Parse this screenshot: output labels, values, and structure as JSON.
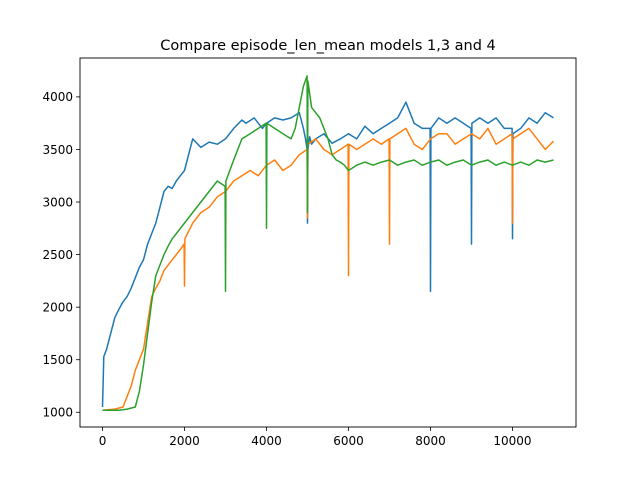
{
  "chart_data": {
    "type": "line",
    "title": "Compare episode_len_mean models 1,3 and 4",
    "xlabel": "",
    "ylabel": "",
    "xlim": [
      -550,
      11550
    ],
    "ylim": [
      860,
      4370
    ],
    "grid": false,
    "legend": "none",
    "x_ticks": [
      0,
      2000,
      4000,
      6000,
      8000,
      10000
    ],
    "y_ticks": [
      1000,
      1500,
      2000,
      2500,
      3000,
      3500,
      4000
    ],
    "colors": [
      "#1f77b4",
      "#ff7f0e",
      "#2ca02c"
    ],
    "series": [
      {
        "color": "#1f77b4",
        "x": [
          0,
          30,
          100,
          200,
          300,
          400,
          500,
          600,
          700,
          800,
          900,
          1000,
          1100,
          1200,
          1300,
          1400,
          1500,
          1600,
          1700,
          1800,
          1900,
          2000,
          2100,
          2200,
          2400,
          2600,
          2800,
          3000,
          3200,
          3400,
          3500,
          3700,
          3900,
          4000,
          4200,
          4400,
          4600,
          4800,
          4900,
          4950,
          4990,
          5000,
          5010,
          5050,
          5100,
          5200,
          5400,
          5600,
          5800,
          6000,
          6200,
          6400,
          6600,
          6800,
          7000,
          7200,
          7400,
          7600,
          7800,
          7990,
          8000,
          8010,
          8200,
          8400,
          8600,
          8800,
          8990,
          9000,
          9010,
          9200,
          9400,
          9600,
          9800,
          9990,
          10000,
          10010,
          10200,
          10400,
          10600,
          10800,
          11000
        ],
        "y": [
          1050,
          1530,
          1600,
          1750,
          1900,
          1980,
          2050,
          2100,
          2180,
          2280,
          2380,
          2450,
          2600,
          2700,
          2800,
          2950,
          3100,
          3150,
          3130,
          3200,
          3250,
          3300,
          3450,
          3600,
          3520,
          3570,
          3550,
          3600,
          3700,
          3780,
          3750,
          3800,
          3700,
          3750,
          3800,
          3780,
          3800,
          3850,
          3700,
          3600,
          3500,
          2800,
          3500,
          3620,
          3550,
          3600,
          3650,
          3560,
          3600,
          3650,
          3600,
          3720,
          3650,
          3700,
          3750,
          3800,
          3950,
          3750,
          3700,
          3700,
          2150,
          3700,
          3800,
          3750,
          3800,
          3750,
          3700,
          2600,
          3750,
          3800,
          3750,
          3800,
          3700,
          3700,
          2650,
          3650,
          3700,
          3800,
          3750,
          3850,
          3800
        ]
      },
      {
        "color": "#ff7f0e",
        "x": [
          0,
          300,
          500,
          600,
          700,
          800,
          900,
          1000,
          1100,
          1200,
          1300,
          1400,
          1500,
          1600,
          1700,
          1800,
          1900,
          1990,
          2000,
          2010,
          2200,
          2400,
          2600,
          2800,
          3000,
          3200,
          3400,
          3600,
          3800,
          4000,
          4200,
          4400,
          4600,
          4800,
          4990,
          5000,
          5010,
          5200,
          5400,
          5600,
          5800,
          5990,
          6000,
          6010,
          6200,
          6400,
          6600,
          6800,
          6990,
          7000,
          7010,
          7200,
          7400,
          7600,
          7800,
          8000,
          8200,
          8400,
          8600,
          8800,
          9000,
          9200,
          9400,
          9600,
          9800,
          9990,
          10000,
          10010,
          10200,
          10400,
          10600,
          10800,
          11000
        ],
        "y": [
          1020,
          1030,
          1050,
          1150,
          1250,
          1400,
          1500,
          1600,
          1850,
          2100,
          2180,
          2250,
          2350,
          2400,
          2450,
          2500,
          2550,
          2600,
          2200,
          2650,
          2800,
          2900,
          2950,
          3050,
          3100,
          3200,
          3250,
          3300,
          3250,
          3350,
          3400,
          3300,
          3350,
          3450,
          3500,
          2850,
          3550,
          3600,
          3500,
          3450,
          3500,
          3550,
          2300,
          3550,
          3500,
          3550,
          3600,
          3550,
          3600,
          2600,
          3600,
          3650,
          3700,
          3550,
          3500,
          3600,
          3650,
          3650,
          3550,
          3600,
          3650,
          3600,
          3700,
          3550,
          3600,
          3650,
          2800,
          3600,
          3650,
          3700,
          3600,
          3500,
          3580
        ]
      },
      {
        "color": "#2ca02c",
        "x": [
          0,
          400,
          600,
          800,
          900,
          1000,
          1100,
          1200,
          1300,
          1400,
          1500,
          1600,
          1700,
          1800,
          1900,
          2000,
          2200,
          2400,
          2600,
          2800,
          2990,
          3000,
          3010,
          3200,
          3400,
          3600,
          3800,
          3990,
          4000,
          4010,
          4200,
          4400,
          4600,
          4700,
          4800,
          4900,
          4990,
          5000,
          5010,
          5100,
          5200,
          5300,
          5400,
          5500,
          5600,
          5700,
          5800,
          5900,
          6000,
          6200,
          6400,
          6600,
          6800,
          7000,
          7200,
          7400,
          7600,
          7800,
          8000,
          8200,
          8400,
          8600,
          8800,
          9000,
          9200,
          9400,
          9600,
          9800,
          10000,
          10200,
          10400,
          10600,
          10800,
          11000
        ],
        "y": [
          1020,
          1020,
          1030,
          1050,
          1200,
          1450,
          1750,
          2050,
          2300,
          2400,
          2500,
          2580,
          2650,
          2700,
          2750,
          2800,
          2900,
          3000,
          3100,
          3200,
          3150,
          2150,
          3200,
          3400,
          3600,
          3650,
          3700,
          3750,
          2750,
          3750,
          3700,
          3650,
          3600,
          3700,
          3900,
          4100,
          4200,
          2900,
          4150,
          3900,
          3850,
          3800,
          3700,
          3600,
          3450,
          3400,
          3380,
          3350,
          3300,
          3350,
          3380,
          3350,
          3380,
          3400,
          3350,
          3380,
          3400,
          3350,
          3380,
          3400,
          3350,
          3380,
          3400,
          3350,
          3380,
          3400,
          3350,
          3380,
          3350,
          3380,
          3350,
          3400,
          3380,
          3400
        ]
      }
    ]
  }
}
